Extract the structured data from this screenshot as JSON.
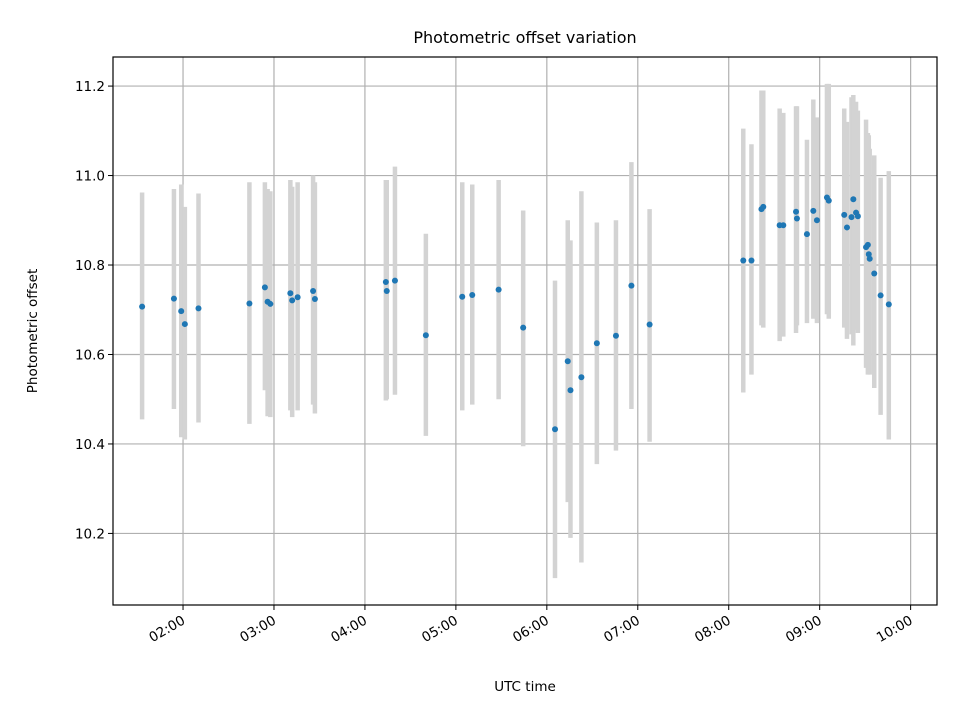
{
  "chart_data": {
    "type": "scatter",
    "title": "Photometric offset variation",
    "xlabel": "UTC time",
    "ylabel": "Photometric offset",
    "x_tick_labels": [
      "02:00",
      "03:00",
      "04:00",
      "05:00",
      "06:00",
      "07:00",
      "08:00",
      "09:00",
      "10:00"
    ],
    "x_ticks_hours": [
      2,
      3,
      4,
      5,
      6,
      7,
      8,
      9,
      10
    ],
    "y_ticks": [
      10.2,
      10.4,
      10.6,
      10.8,
      11.0,
      11.2
    ],
    "y_tick_labels": [
      "10.2",
      "10.4",
      "10.6",
      "10.8",
      "11.0",
      "11.2"
    ],
    "xlim_hours": [
      1.23,
      10.29
    ],
    "ylim": [
      10.04,
      11.265
    ],
    "grid": true,
    "marker_color": "#1f77b4",
    "errorbar_color": "#d3d3d3",
    "series": [
      {
        "x_hours": [
          1.55,
          1.9,
          1.98,
          2.02,
          2.17,
          2.73,
          2.9,
          2.93,
          2.96,
          3.18,
          3.2,
          3.26,
          3.43,
          3.45,
          4.23,
          4.24,
          4.33,
          4.67,
          5.07,
          5.18,
          5.47,
          5.74,
          6.09,
          6.23,
          6.26,
          6.38,
          6.55,
          6.76,
          6.93,
          7.13,
          8.16,
          8.25,
          8.36,
          8.38,
          8.56,
          8.6,
          8.74,
          8.75,
          8.86,
          8.93,
          8.97,
          9.08,
          9.1,
          9.27,
          9.3,
          9.35,
          9.37,
          9.4,
          9.42,
          9.51,
          9.53,
          9.54,
          9.55,
          9.6,
          9.67,
          9.76
        ],
        "y": [
          10.707,
          10.725,
          10.697,
          10.668,
          10.703,
          10.714,
          10.75,
          10.718,
          10.713,
          10.737,
          10.721,
          10.728,
          10.742,
          10.724,
          10.762,
          10.742,
          10.765,
          10.643,
          10.729,
          10.733,
          10.745,
          10.66,
          10.433,
          10.585,
          10.52,
          10.549,
          10.625,
          10.642,
          10.754,
          10.667,
          10.81,
          10.81,
          10.925,
          10.93,
          10.889,
          10.889,
          10.919,
          10.904,
          10.869,
          10.921,
          10.9,
          10.951,
          10.944,
          10.912,
          10.884,
          10.907,
          10.947,
          10.917,
          10.909,
          10.84,
          10.845,
          10.824,
          10.814,
          10.781,
          10.732,
          10.712
        ],
        "yerr_low": [
          10.455,
          10.478,
          10.415,
          10.41,
          10.448,
          10.445,
          10.52,
          10.462,
          10.46,
          10.475,
          10.46,
          10.475,
          10.488,
          10.468,
          10.497,
          10.5,
          10.51,
          10.418,
          10.475,
          10.488,
          10.5,
          10.395,
          10.1,
          10.27,
          10.19,
          10.135,
          10.355,
          10.385,
          10.478,
          10.405,
          10.515,
          10.555,
          10.665,
          10.66,
          10.63,
          10.64,
          10.648,
          10.665,
          10.67,
          10.68,
          10.67,
          10.69,
          10.68,
          10.66,
          10.635,
          10.645,
          10.62,
          10.655,
          10.648,
          10.57,
          10.555,
          10.56,
          10.555,
          10.525,
          10.465,
          10.41
        ],
        "yerr_high": [
          10.962,
          10.97,
          10.98,
          10.93,
          10.96,
          10.985,
          10.985,
          10.97,
          10.965,
          10.99,
          10.975,
          10.985,
          11.0,
          10.985,
          10.99,
          10.99,
          11.02,
          10.87,
          10.985,
          10.98,
          10.99,
          10.922,
          10.765,
          10.9,
          10.855,
          10.965,
          10.895,
          10.9,
          11.03,
          10.925,
          11.105,
          11.07,
          11.19,
          11.19,
          11.15,
          11.14,
          11.155,
          11.155,
          11.08,
          11.17,
          11.13,
          11.205,
          11.205,
          11.15,
          11.12,
          11.175,
          11.18,
          11.165,
          11.145,
          11.125,
          11.095,
          11.09,
          11.06,
          11.045,
          10.995,
          11.01
        ]
      }
    ]
  }
}
